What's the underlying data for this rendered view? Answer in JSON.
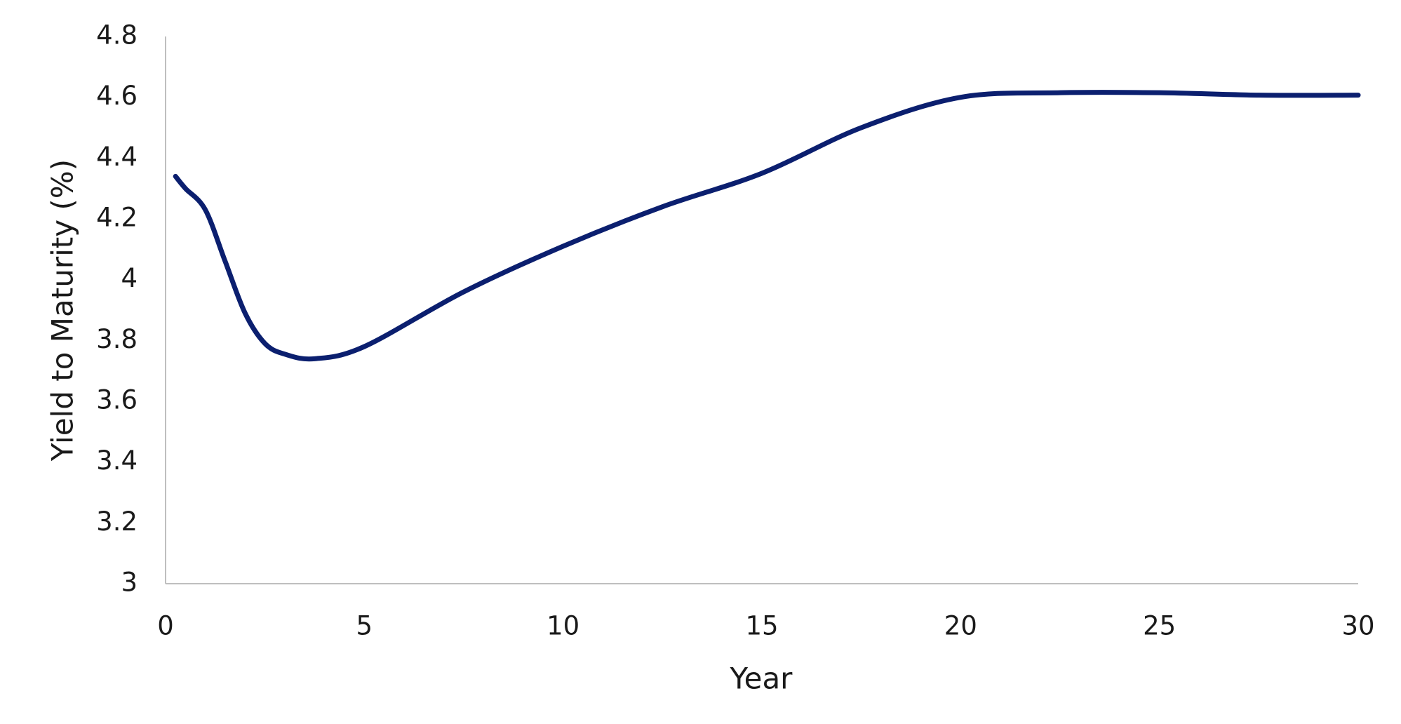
{
  "chart_data": {
    "type": "line",
    "xlabel": "Year",
    "ylabel": "Yield to Maturity (%)",
    "x": [
      0.25,
      0.5,
      1,
      1.5,
      2,
      2.5,
      3,
      3.75,
      5,
      7.5,
      10,
      12.5,
      15,
      17.5,
      20,
      22.5,
      25,
      27.5,
      30
    ],
    "series": [
      {
        "color": "#0b1f6f",
        "values": [
          4.34,
          4.3,
          4.23,
          4.06,
          3.89,
          3.79,
          3.755,
          3.74,
          3.78,
          3.96,
          4.11,
          4.24,
          4.35,
          4.5,
          4.6,
          4.615,
          4.615,
          4.607,
          4.607
        ]
      }
    ],
    "xlim": [
      0,
      30
    ],
    "xticks": [
      0,
      5,
      10,
      15,
      20,
      25,
      30
    ],
    "ylim": [
      3,
      4.8
    ],
    "yticks": [
      3,
      3.2,
      3.4,
      3.6,
      3.8,
      4,
      4.2,
      4.4,
      4.6,
      4.8
    ],
    "grid": false
  }
}
